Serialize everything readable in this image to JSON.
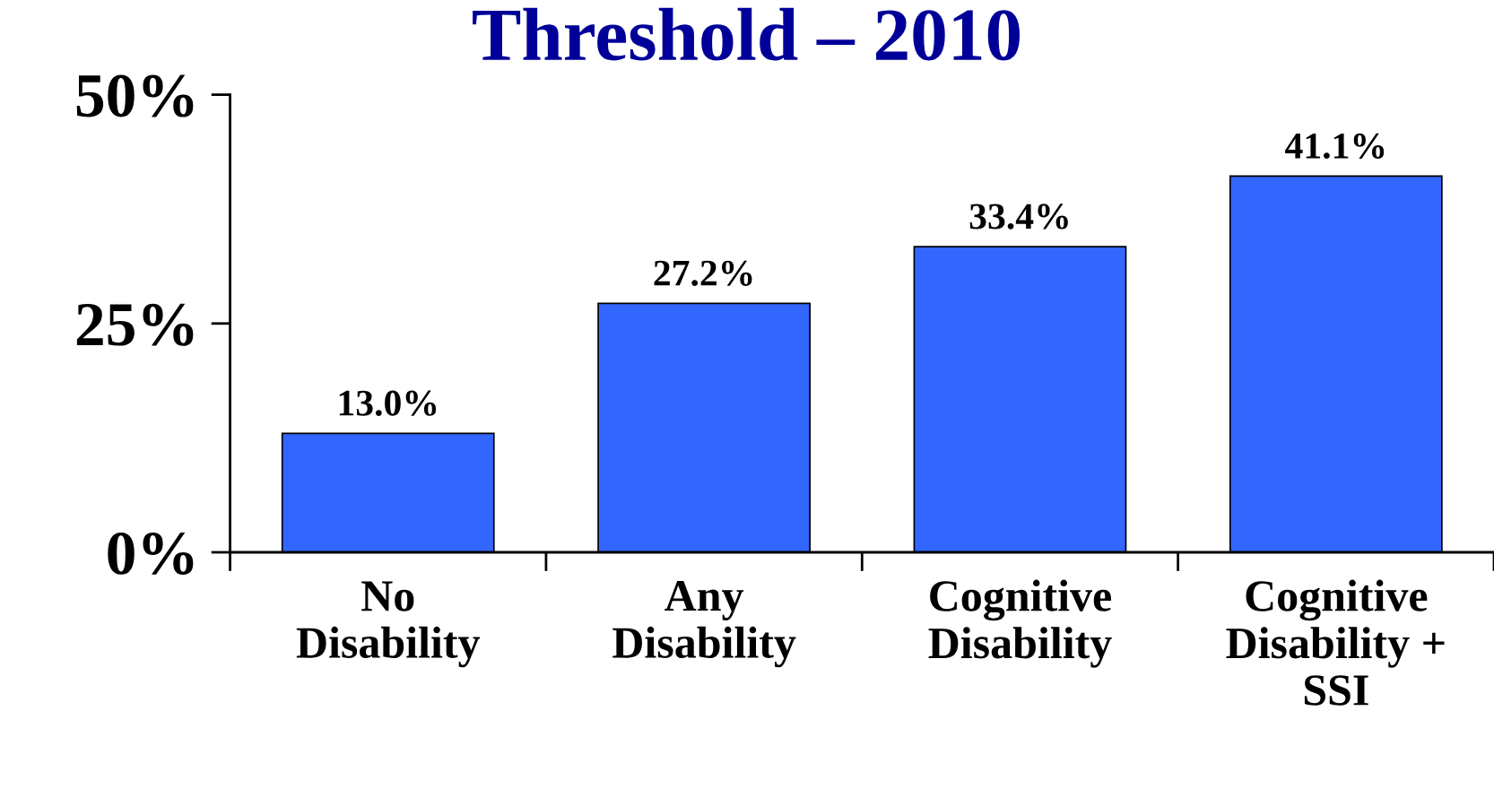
{
  "chart_data": {
    "type": "bar",
    "title": "Threshold – 2010",
    "categories": [
      "No\nDisability",
      "Any\nDisability",
      "Cognitive\nDisability",
      "Cognitive\nDisability +\nSSI"
    ],
    "values": [
      13.0,
      27.2,
      33.4,
      41.1
    ],
    "value_labels": [
      "13.0%",
      "27.2%",
      "33.4%",
      "41.1%"
    ],
    "color": "#3366ff",
    "ylim": [
      0,
      50
    ],
    "yticks": [
      {
        "value": 0,
        "label": "0%"
      },
      {
        "value": 25,
        "label": "25%"
      },
      {
        "value": 50,
        "label": "50%"
      }
    ]
  }
}
